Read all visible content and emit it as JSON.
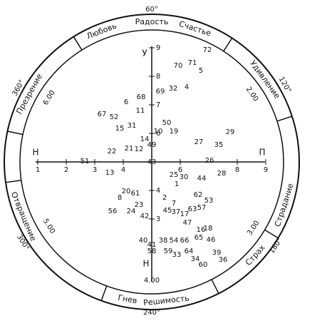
{
  "ring_labels": [
    "Любовь",
    "Радость",
    "Счастье",
    "Удивление",
    "Страдание",
    "Страх",
    "Решимость",
    "Гнев",
    "Отвращение",
    "Презрение"
  ],
  "degree_labels": [
    "60°",
    "120°",
    "180°",
    "240°",
    "300°",
    "360°"
  ],
  "ring_values": [
    "6.00",
    "2.00",
    "3.00",
    "5.00"
  ],
  "axes": {
    "top": "У",
    "bottom": "Н",
    "left": "Н",
    "right": "П",
    "bottom_value": "4.00"
  },
  "x_ticks": [
    1,
    2,
    3,
    4,
    6,
    8,
    9
  ],
  "y_ticks": [
    9,
    8,
    7,
    6,
    4,
    3
  ],
  "points": [
    72,
    70,
    71,
    5,
    69,
    32,
    4,
    68,
    6,
    11,
    67,
    52,
    15,
    31,
    50,
    10,
    19,
    29,
    14,
    49,
    27,
    35,
    22,
    21,
    12,
    43,
    26,
    51,
    13,
    25,
    30,
    44,
    28,
    1,
    20,
    61,
    8,
    2,
    62,
    53,
    7,
    23,
    56,
    24,
    45,
    37,
    17,
    63,
    57,
    42,
    47,
    16,
    18,
    65,
    46,
    40,
    38,
    54,
    66,
    41,
    58,
    59,
    33,
    64,
    39,
    34,
    36,
    60
  ]
}
